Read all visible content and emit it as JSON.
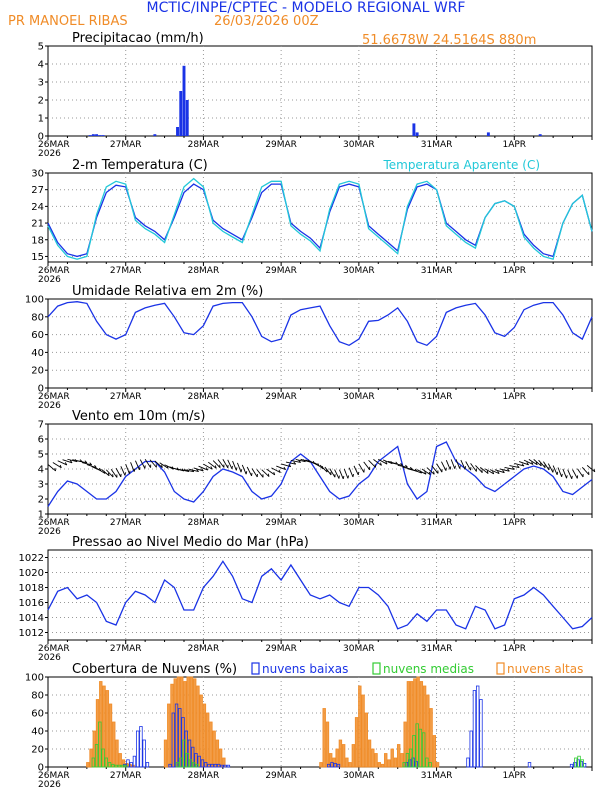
{
  "header": {
    "title": "MCTIC/INPE/CPTEC - MODELO REGIONAL WRF",
    "location": "PR MANOEL RIBAS",
    "run": "26/03/2026 00Z",
    "coords": "51.6678W 24.5164S 880m"
  },
  "colors": {
    "blue": "#1a33e6",
    "cyan": "#22c8d8",
    "green": "#33cc33",
    "orange": "#f08c28",
    "grid": "#999999"
  },
  "time_ticks": [
    "26MAR",
    "27MAR",
    "28MAR",
    "29MAR",
    "30MAR",
    "31MAR",
    "1APR"
  ],
  "year_label": "2026",
  "chart_data": [
    {
      "id": "precip",
      "type": "bar",
      "title": "Precipitacao (mm/h)",
      "ylim": [
        0,
        5
      ],
      "yticks": [
        0,
        1,
        2,
        3,
        4,
        5
      ],
      "x_unit": "hours since 26MAR 00Z",
      "x": [
        13,
        14,
        15,
        16,
        17,
        33,
        40,
        41,
        42,
        43,
        113,
        114,
        136,
        152
      ],
      "values": [
        0.05,
        0.1,
        0.1,
        0.05,
        0.05,
        0.1,
        0.5,
        2.5,
        3.9,
        2.0,
        0.7,
        0.2,
        0.2,
        0.1
      ]
    },
    {
      "id": "temp",
      "type": "line",
      "title": "2-m Temperatura (C)",
      "title2": "Temperatura Aparente (C)",
      "ylim": [
        14,
        30
      ],
      "yticks": [
        15,
        18,
        21,
        24,
        27,
        30
      ],
      "x_unit": "hours since 26MAR 00Z",
      "series": [
        {
          "name": "2-m Temperatura",
          "color": "blue",
          "x": [
            0,
            3,
            6,
            9,
            12,
            15,
            18,
            21,
            24,
            27,
            30,
            33,
            36,
            39,
            42,
            45,
            48,
            51,
            54,
            57,
            60,
            63,
            66,
            69,
            72,
            75,
            78,
            81,
            84,
            87,
            90,
            93,
            96,
            99,
            102,
            105,
            108,
            111,
            114,
            117,
            120,
            123,
            126,
            129,
            132,
            135,
            138,
            141,
            144,
            147,
            150,
            153,
            156,
            159,
            162,
            165,
            168
          ],
          "values": [
            21,
            17.5,
            15.5,
            15,
            15.5,
            22,
            26.5,
            27.8,
            27.5,
            22,
            20.5,
            19.5,
            18,
            22,
            26.5,
            28,
            27,
            21.5,
            20,
            19,
            18,
            22,
            26.5,
            28,
            28,
            21,
            19.5,
            18.3,
            16.5,
            23,
            27.5,
            28,
            27.5,
            20.5,
            19,
            17.5,
            16,
            23.5,
            27.5,
            28,
            27,
            21,
            19.5,
            18,
            17,
            22,
            24.5,
            25,
            24,
            19,
            17,
            15.5,
            15,
            21,
            24.5,
            26,
            19.5
          ]
        },
        {
          "name": "Temperatura Aparente",
          "color": "cyan",
          "x": [
            0,
            3,
            6,
            9,
            12,
            15,
            18,
            21,
            24,
            27,
            30,
            33,
            36,
            39,
            42,
            45,
            48,
            51,
            54,
            57,
            60,
            63,
            66,
            69,
            72,
            75,
            78,
            81,
            84,
            87,
            90,
            93,
            96,
            99,
            102,
            105,
            108,
            111,
            114,
            117,
            120,
            123,
            126,
            129,
            132,
            135,
            138,
            141,
            144,
            147,
            150,
            153,
            156,
            159,
            162,
            165,
            168
          ],
          "values": [
            20.5,
            17,
            15,
            14.5,
            15,
            22.5,
            27.5,
            28.5,
            28,
            21.5,
            20,
            19,
            17.5,
            22.5,
            27.5,
            29,
            27.5,
            21,
            19.5,
            18.5,
            17.5,
            22.5,
            27.5,
            28.5,
            28.5,
            20.5,
            19,
            17.8,
            16,
            23.5,
            28,
            28.5,
            28,
            20,
            18.5,
            17,
            15.5,
            24,
            28,
            28.5,
            27,
            20.5,
            19,
            17.5,
            16.5,
            22,
            24.5,
            25,
            24,
            18.5,
            16.5,
            15,
            14.5,
            21,
            24.5,
            26,
            19.5
          ]
        }
      ]
    },
    {
      "id": "rh",
      "type": "line",
      "title": "Umidade Relativa em 2m (%)",
      "ylim": [
        0,
        100
      ],
      "yticks": [
        0,
        20,
        40,
        60,
        80,
        100
      ],
      "x_unit": "hours since 26MAR 00Z",
      "series": [
        {
          "name": "Umidade Relativa",
          "color": "blue",
          "x": [
            0,
            3,
            6,
            9,
            12,
            15,
            18,
            21,
            24,
            27,
            30,
            33,
            36,
            39,
            42,
            45,
            48,
            51,
            54,
            57,
            60,
            63,
            66,
            69,
            72,
            75,
            78,
            81,
            84,
            87,
            90,
            93,
            96,
            99,
            102,
            105,
            108,
            111,
            114,
            117,
            120,
            123,
            126,
            129,
            132,
            135,
            138,
            141,
            144,
            147,
            150,
            153,
            156,
            159,
            162,
            165,
            168
          ],
          "values": [
            80,
            92,
            96,
            97,
            95,
            75,
            60,
            55,
            60,
            85,
            90,
            93,
            95,
            80,
            62,
            60,
            70,
            92,
            95,
            96,
            96,
            80,
            58,
            52,
            55,
            82,
            88,
            90,
            92,
            70,
            52,
            48,
            55,
            75,
            76,
            82,
            90,
            75,
            52,
            48,
            58,
            85,
            90,
            93,
            95,
            82,
            62,
            58,
            68,
            88,
            93,
            96,
            96,
            82,
            62,
            55,
            80
          ]
        }
      ]
    },
    {
      "id": "wind",
      "type": "line",
      "title": "Vento em 10m (m/s)",
      "ylim": [
        1,
        7
      ],
      "yticks": [
        1,
        2,
        3,
        4,
        5,
        6,
        7
      ],
      "x_unit": "hours since 26MAR 00Z",
      "series": [
        {
          "name": "Velocidade do Vento",
          "color": "blue",
          "x": [
            0,
            3,
            6,
            9,
            12,
            15,
            18,
            21,
            24,
            27,
            30,
            33,
            36,
            39,
            42,
            45,
            48,
            51,
            54,
            57,
            60,
            63,
            66,
            69,
            72,
            75,
            78,
            81,
            84,
            87,
            90,
            93,
            96,
            99,
            102,
            105,
            108,
            111,
            114,
            117,
            120,
            123,
            126,
            129,
            132,
            135,
            138,
            141,
            144,
            147,
            150,
            153,
            156,
            159,
            162,
            165,
            168
          ],
          "values": [
            1.5,
            2.5,
            3.2,
            3.0,
            2.5,
            2.0,
            2.0,
            2.5,
            3.5,
            4.0,
            4.5,
            4.5,
            3.8,
            2.5,
            2.0,
            1.8,
            2.5,
            3.5,
            4.0,
            3.8,
            3.5,
            2.5,
            2.0,
            2.2,
            3.0,
            4.5,
            5.0,
            4.5,
            3.5,
            2.5,
            2.0,
            2.2,
            3.0,
            3.5,
            4.5,
            5.0,
            5.5,
            3.0,
            2.0,
            2.5,
            5.5,
            5.8,
            4.5,
            4.0,
            3.5,
            2.8,
            2.5,
            3.0,
            3.5,
            4.0,
            4.2,
            4.0,
            3.5,
            2.5,
            2.3,
            2.8,
            3.3
          ]
        }
      ],
      "barbs": "wind direction vectors along the speed axis"
    },
    {
      "id": "pressure",
      "type": "line",
      "title": "Pressao ao Nivel Medio do Mar (hPa)",
      "ylim": [
        1011,
        1023
      ],
      "yticks": [
        1012,
        1014,
        1016,
        1018,
        1020,
        1022
      ],
      "x_unit": "hours since 26MAR 00Z",
      "series": [
        {
          "name": "Pressao",
          "color": "blue",
          "x": [
            0,
            3,
            6,
            9,
            12,
            15,
            18,
            21,
            24,
            27,
            30,
            33,
            36,
            39,
            42,
            45,
            48,
            51,
            54,
            57,
            60,
            63,
            66,
            69,
            72,
            75,
            78,
            81,
            84,
            87,
            90,
            93,
            96,
            99,
            102,
            105,
            108,
            111,
            114,
            117,
            120,
            123,
            126,
            129,
            132,
            135,
            138,
            141,
            144,
            147,
            150,
            153,
            156,
            159,
            162,
            165,
            168
          ],
          "values": [
            1015,
            1017.5,
            1018,
            1016.5,
            1017,
            1016,
            1013.5,
            1013,
            1016,
            1017.5,
            1017,
            1016,
            1019,
            1018,
            1015,
            1015,
            1018,
            1019.5,
            1021.5,
            1019.5,
            1016.5,
            1016,
            1019.5,
            1020.5,
            1019,
            1021,
            1019,
            1017,
            1016.5,
            1017,
            1016,
            1015.5,
            1018,
            1018,
            1017,
            1015.5,
            1012.5,
            1013,
            1014.5,
            1013.5,
            1015,
            1015,
            1013,
            1012.5,
            1015.5,
            1015,
            1012.5,
            1013,
            1016.5,
            1017,
            1018,
            1017,
            1015.5,
            1014,
            1012.5,
            1012.8,
            1014
          ]
        }
      ]
    },
    {
      "id": "clouds",
      "type": "bar",
      "title": "Cobertura de Nuvens (%)",
      "ylim": [
        0,
        100
      ],
      "yticks": [
        0,
        20,
        40,
        60,
        80,
        100
      ],
      "x_unit": "hours since 26MAR 00Z",
      "legend": [
        "nuvens baixas",
        "nuvens medias",
        "nuvens altas"
      ],
      "series": [
        {
          "name": "nuvens baixas",
          "color": "blue",
          "x": [
            24,
            25,
            26,
            27,
            28,
            29,
            30,
            31,
            38,
            39,
            40,
            41,
            42,
            43,
            44,
            45,
            46,
            47,
            48,
            49,
            50,
            51,
            52,
            53,
            54,
            55,
            56,
            87,
            88,
            89,
            90,
            111,
            112,
            113,
            114,
            130,
            131,
            132,
            133,
            134,
            149,
            162,
            163,
            164,
            165,
            166
          ],
          "values": [
            3,
            8,
            5,
            12,
            40,
            45,
            30,
            5,
            3,
            60,
            70,
            65,
            55,
            40,
            30,
            22,
            15,
            12,
            8,
            5,
            3,
            3,
            3,
            3,
            2,
            2,
            2,
            3,
            5,
            4,
            3,
            5,
            8,
            10,
            6,
            10,
            40,
            85,
            90,
            75,
            5,
            3,
            5,
            8,
            6,
            4
          ]
        },
        {
          "name": "nuvens medias",
          "color": "green",
          "x": [
            14,
            15,
            16,
            17,
            18,
            19,
            20,
            21,
            22,
            23,
            24,
            40,
            41,
            42,
            43,
            44,
            45,
            46,
            110,
            111,
            112,
            113,
            114,
            115,
            116,
            117,
            118,
            163,
            164,
            165
          ],
          "values": [
            10,
            25,
            50,
            20,
            10,
            5,
            3,
            2,
            2,
            2,
            2,
            5,
            10,
            30,
            15,
            8,
            5,
            3,
            5,
            15,
            20,
            35,
            48,
            42,
            38,
            10,
            5,
            10,
            12,
            8
          ]
        },
        {
          "name": "nuvens altas",
          "color": "orange",
          "x": [
            12,
            13,
            14,
            15,
            16,
            17,
            18,
            19,
            20,
            21,
            22,
            23,
            24,
            25,
            26,
            36,
            37,
            38,
            39,
            40,
            41,
            42,
            43,
            44,
            45,
            46,
            47,
            48,
            49,
            50,
            51,
            52,
            53,
            54,
            84,
            85,
            86,
            87,
            88,
            89,
            90,
            91,
            92,
            93,
            94,
            95,
            96,
            97,
            98,
            99,
            100,
            101,
            102,
            103,
            104,
            105,
            106,
            107,
            108,
            109,
            110,
            111,
            112,
            113,
            114,
            115,
            116,
            117,
            118,
            119,
            120
          ],
          "values": [
            5,
            20,
            40,
            75,
            95,
            90,
            85,
            70,
            50,
            30,
            15,
            8,
            4,
            3,
            2,
            30,
            70,
            92,
            98,
            100,
            100,
            95,
            100,
            100,
            98,
            90,
            80,
            70,
            60,
            50,
            40,
            30,
            20,
            10,
            5,
            65,
            50,
            15,
            10,
            20,
            30,
            25,
            10,
            5,
            25,
            55,
            90,
            80,
            60,
            30,
            20,
            15,
            5,
            3,
            15,
            8,
            20,
            10,
            25,
            15,
            50,
            95,
            95,
            98,
            100,
            95,
            90,
            80,
            65,
            35,
            5
          ]
        }
      ]
    }
  ]
}
